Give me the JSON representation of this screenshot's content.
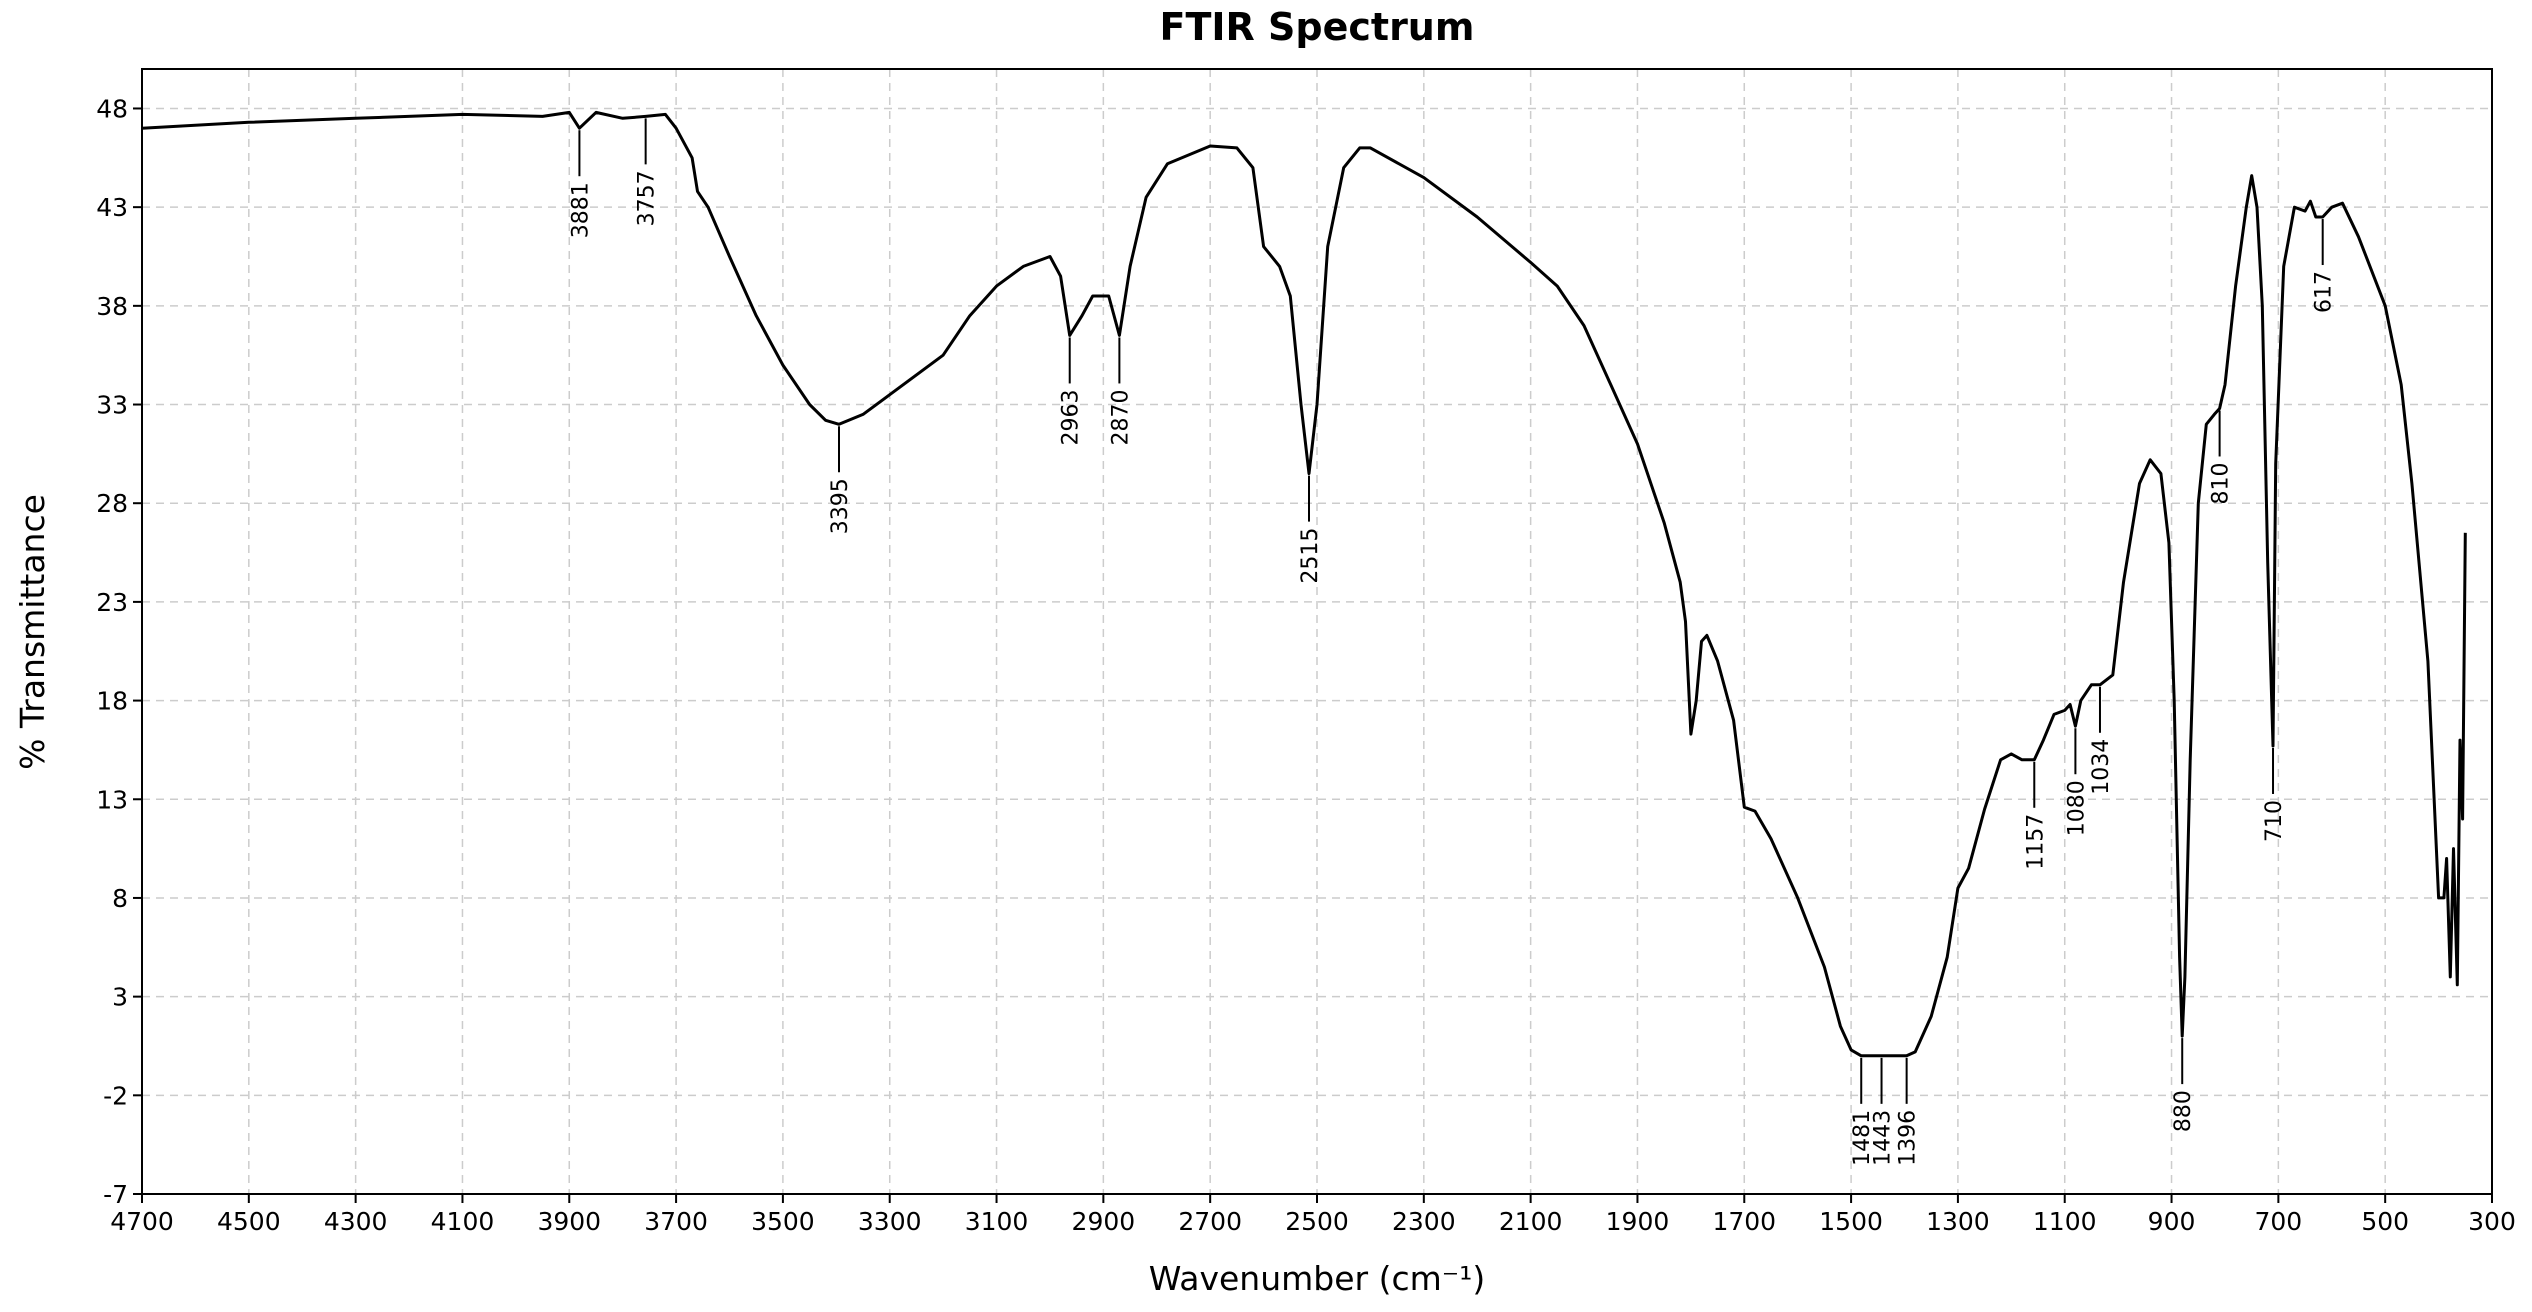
{
  "chart_data": {
    "type": "line",
    "title": "FTIR Spectrum",
    "xlabel": "Wavenumber (cm⁻¹)",
    "ylabel": "% Transmittance",
    "color": "#000000",
    "grid": true,
    "xlim": [
      4700,
      300
    ],
    "ylim": [
      -7,
      50
    ],
    "xticks": [
      4700,
      4500,
      4300,
      4100,
      3900,
      3700,
      3500,
      3300,
      3100,
      2900,
      2700,
      2500,
      2300,
      2100,
      1900,
      1700,
      1500,
      1300,
      1100,
      900,
      700,
      500,
      300
    ],
    "yticks": [
      -7,
      -2,
      3,
      8,
      13,
      18,
      23,
      28,
      33,
      38,
      43,
      48
    ],
    "x": [
      4700,
      4500,
      4300,
      4100,
      3950,
      3900,
      3881,
      3850,
      3800,
      3757,
      3720,
      3700,
      3670,
      3660,
      3640,
      3600,
      3550,
      3500,
      3450,
      3420,
      3395,
      3350,
      3300,
      3200,
      3150,
      3100,
      3050,
      3000,
      2980,
      2963,
      2940,
      2920,
      2890,
      2870,
      2850,
      2820,
      2780,
      2700,
      2650,
      2620,
      2600,
      2570,
      2550,
      2530,
      2515,
      2500,
      2480,
      2450,
      2420,
      2400,
      2300,
      2200,
      2100,
      2050,
      2000,
      1950,
      1900,
      1850,
      1820,
      1810,
      1800,
      1790,
      1780,
      1770,
      1750,
      1720,
      1700,
      1680,
      1650,
      1600,
      1550,
      1520,
      1500,
      1481,
      1443,
      1420,
      1396,
      1380,
      1350,
      1320,
      1300,
      1280,
      1250,
      1220,
      1200,
      1180,
      1157,
      1140,
      1120,
      1100,
      1090,
      1080,
      1070,
      1050,
      1034,
      1010,
      990,
      960,
      940,
      920,
      905,
      895,
      885,
      880,
      875,
      865,
      850,
      835,
      820,
      810,
      800,
      780,
      760,
      750,
      740,
      730,
      720,
      710,
      705,
      690,
      670,
      650,
      640,
      630,
      617,
      600,
      580,
      550,
      500,
      470,
      450,
      420,
      400,
      390,
      385,
      378,
      372,
      365,
      360,
      355,
      350
    ],
    "y": [
      47.0,
      47.3,
      47.5,
      47.7,
      47.6,
      47.8,
      47.0,
      47.8,
      47.5,
      47.6,
      47.7,
      47.0,
      45.5,
      43.8,
      43.0,
      40.5,
      37.5,
      35.0,
      33.0,
      32.2,
      32.0,
      32.5,
      33.5,
      35.5,
      37.5,
      39.0,
      40.0,
      40.5,
      39.5,
      36.5,
      37.5,
      38.5,
      38.5,
      36.5,
      40.0,
      43.5,
      45.2,
      46.1,
      46.0,
      45.0,
      41.0,
      40.0,
      38.5,
      33.0,
      29.5,
      33.0,
      41.0,
      45.0,
      46.0,
      46.0,
      44.5,
      42.5,
      40.2,
      39.0,
      37.0,
      34.0,
      31.0,
      27.0,
      24.0,
      22.0,
      16.3,
      18.0,
      21.0,
      21.3,
      20.0,
      17.0,
      12.6,
      12.4,
      11.0,
      8.0,
      4.5,
      1.5,
      0.3,
      0.0,
      0.0,
      0.0,
      0.0,
      0.2,
      2.0,
      5.0,
      8.5,
      9.5,
      12.5,
      15.0,
      15.3,
      15.0,
      15.0,
      16.0,
      17.3,
      17.5,
      17.8,
      16.7,
      18.0,
      18.8,
      18.8,
      19.3,
      24.0,
      29.0,
      30.2,
      29.5,
      26.0,
      18.0,
      5.0,
      1.0,
      4.0,
      15.0,
      28.0,
      32.0,
      32.5,
      32.8,
      34.0,
      39.0,
      43.0,
      44.6,
      43.0,
      38.0,
      25.0,
      15.7,
      30.0,
      40.0,
      43.0,
      42.8,
      43.3,
      42.5,
      42.5,
      43.0,
      43.2,
      41.5,
      38.0,
      34.0,
      29.0,
      20.0,
      8.0,
      8.0,
      10.0,
      4.0,
      10.5,
      3.6,
      16.0,
      12.0,
      26.5
    ],
    "annotations": [
      {
        "x": 3881,
        "y": 47.0
      },
      {
        "x": 3757,
        "y": 47.6
      },
      {
        "x": 3395,
        "y": 32.0
      },
      {
        "x": 2963,
        "y": 36.5
      },
      {
        "x": 2870,
        "y": 36.5
      },
      {
        "x": 2515,
        "y": 29.5
      },
      {
        "x": 1481,
        "y": 0.0
      },
      {
        "x": 1443,
        "y": 0.0
      },
      {
        "x": 1396,
        "y": 0.0
      },
      {
        "x": 1157,
        "y": 15.0
      },
      {
        "x": 1080,
        "y": 16.7
      },
      {
        "x": 1034,
        "y": 18.8
      },
      {
        "x": 880,
        "y": 1.0
      },
      {
        "x": 810,
        "y": 32.8
      },
      {
        "x": 710,
        "y": 15.7
      },
      {
        "x": 617,
        "y": 42.5
      }
    ]
  }
}
